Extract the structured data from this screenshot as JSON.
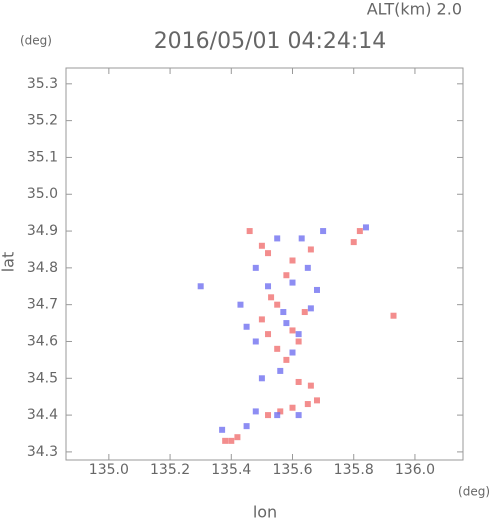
{
  "chart_data": {
    "type": "scatter",
    "title": "2016/05/01 04:24:14",
    "annotations": [
      "ALT(km) 2.0",
      "(deg)",
      "(deg)"
    ],
    "x_label": "lon",
    "y_label": "lat",
    "xlim": [
      134.86,
      136.157
    ],
    "ylim": [
      34.278,
      35.343
    ],
    "xticks": [
      {
        "value": 135.0,
        "label": "135.0"
      },
      135.2,
      135.4,
      135.6,
      135.8,
      {
        "value": 136.0,
        "label": "136.0"
      }
    ],
    "yticks": [
      34.3,
      34.4,
      34.5,
      34.6,
      34.7,
      34.8,
      34.9,
      {
        "value": 35.0,
        "label": "35.0"
      },
      35.1,
      35.2,
      35.3
    ],
    "grid": false,
    "series": [
      {
        "color": "#f07070",
        "x": [
          135.38,
          135.4,
          135.42,
          135.52,
          135.56,
          135.6,
          135.65,
          135.68,
          135.66,
          135.62,
          135.58,
          135.55,
          135.52,
          135.5,
          135.6,
          135.62,
          135.55,
          135.58,
          135.6,
          135.5,
          135.52,
          135.66,
          135.8,
          135.82,
          135.93,
          135.46,
          135.64,
          135.53
        ],
        "y": [
          34.33,
          34.33,
          34.34,
          34.4,
          34.41,
          34.42,
          34.43,
          34.44,
          34.48,
          34.49,
          34.55,
          34.58,
          34.62,
          34.66,
          34.63,
          34.6,
          34.7,
          34.78,
          34.82,
          34.86,
          34.84,
          34.85,
          34.87,
          34.9,
          34.67,
          34.9,
          34.68,
          34.72
        ]
      },
      {
        "color": "#7070f0",
        "x": [
          135.37,
          135.45,
          135.48,
          135.55,
          135.62,
          135.5,
          135.56,
          135.6,
          135.45,
          135.48,
          135.58,
          135.62,
          135.57,
          135.52,
          135.48,
          135.6,
          135.65,
          135.68,
          135.63,
          135.55,
          135.7,
          135.3,
          135.66,
          135.84,
          135.43
        ],
        "y": [
          34.36,
          34.37,
          34.41,
          34.4,
          34.4,
          34.5,
          34.52,
          34.57,
          34.64,
          34.6,
          34.65,
          34.62,
          34.68,
          34.75,
          34.8,
          34.76,
          34.8,
          34.74,
          34.88,
          34.88,
          34.9,
          34.75,
          34.69,
          34.91,
          34.7
        ]
      }
    ]
  }
}
